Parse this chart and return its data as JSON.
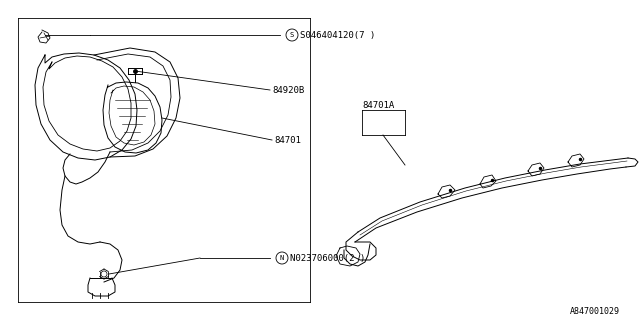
{
  "bg_color": "#ffffff",
  "line_color": "#000000",
  "text_color": "#000000",
  "diagram_number": "A847001029",
  "labels": {
    "S": "S046404120(7 )",
    "84920B": "84920B",
    "84701": "84701",
    "N": "N023706000(2 )",
    "84701A": "84701A"
  },
  "font_size": 6.5,
  "font_size_small": 5.5
}
